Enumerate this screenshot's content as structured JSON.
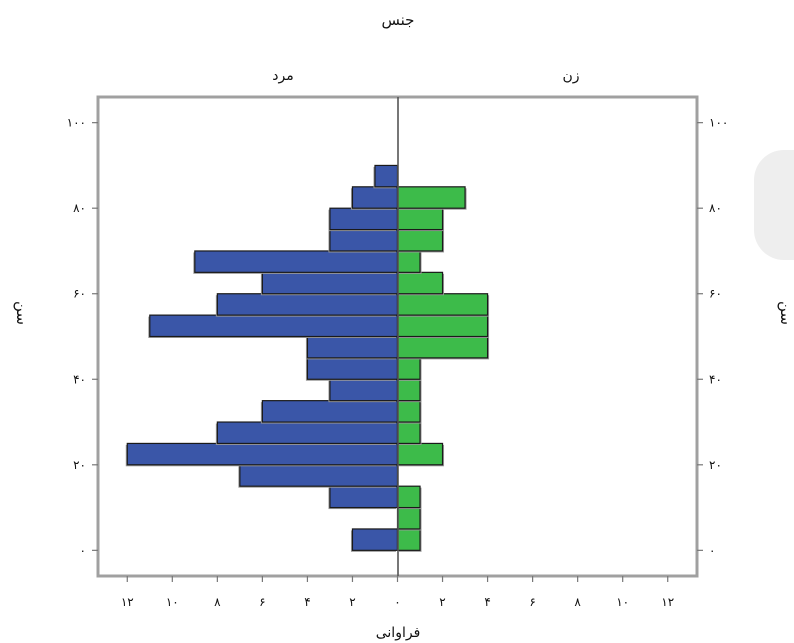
{
  "chart_data": {
    "type": "bar",
    "orientation": "horizontal",
    "layout": "population-pyramid",
    "title": "جنس",
    "xlabel": "فراوانی",
    "ylabel": "سن",
    "left_group_label": "مرد",
    "right_group_label": "زن",
    "age_bins": [
      {
        "from": 0,
        "to": 5
      },
      {
        "from": 5,
        "to": 10
      },
      {
        "from": 10,
        "to": 15
      },
      {
        "from": 15,
        "to": 20
      },
      {
        "from": 20,
        "to": 25
      },
      {
        "from": 25,
        "to": 30
      },
      {
        "from": 30,
        "to": 35
      },
      {
        "from": 35,
        "to": 40
      },
      {
        "from": 40,
        "to": 45
      },
      {
        "from": 45,
        "to": 50
      },
      {
        "from": 50,
        "to": 55
      },
      {
        "from": 55,
        "to": 60
      },
      {
        "from": 60,
        "to": 65
      },
      {
        "from": 65,
        "to": 70
      },
      {
        "from": 70,
        "to": 75
      },
      {
        "from": 75,
        "to": 80
      },
      {
        "from": 80,
        "to": 85
      },
      {
        "from": 85,
        "to": 90
      }
    ],
    "series": [
      {
        "name": "مرد",
        "color": "#3a56a8",
        "values": [
          2,
          0,
          3,
          7,
          12,
          8,
          6,
          3,
          4,
          4,
          11,
          8,
          6,
          9,
          3,
          3,
          2,
          1
        ]
      },
      {
        "name": "زن",
        "color": "#3dbb4a",
        "values": [
          1,
          1,
          1,
          0,
          2,
          1,
          1,
          1,
          1,
          4,
          4,
          4,
          2,
          1,
          2,
          2,
          3,
          0
        ]
      }
    ],
    "x_ticks": [
      "۱۲",
      "۱۰",
      "۸",
      "۶",
      "۴",
      "۲",
      "۰",
      "۲",
      "۴",
      "۶",
      "۸",
      "۱۰",
      "۱۲"
    ],
    "x_tick_values": [
      -12,
      -10,
      -8,
      -6,
      -4,
      -2,
      0,
      2,
      4,
      6,
      8,
      10,
      12
    ],
    "y_ticks": [
      "۰",
      "۲۰",
      "۴۰",
      "۶۰",
      "۸۰",
      "۱۰۰"
    ],
    "y_tick_values": [
      0,
      20,
      40,
      60,
      80,
      100
    ],
    "xlim": [
      -13.3,
      13.3
    ],
    "ylim": [
      -6,
      106
    ],
    "grid": false,
    "legend": "none"
  }
}
